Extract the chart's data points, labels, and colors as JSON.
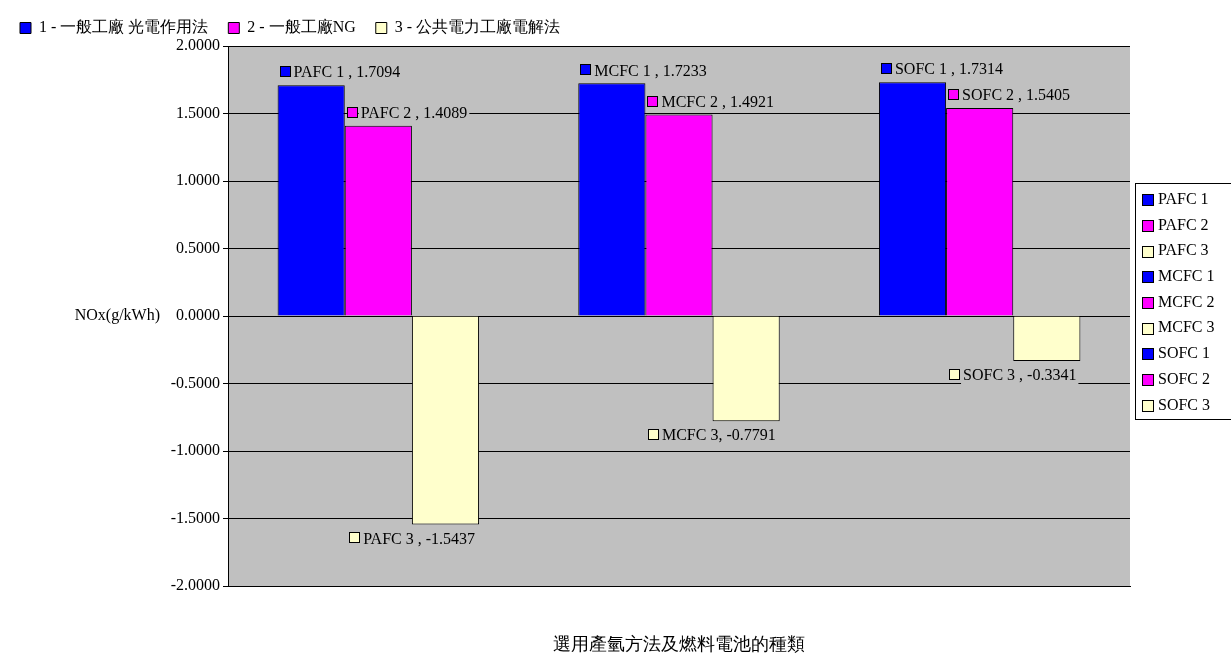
{
  "chart_data": {
    "type": "bar",
    "xlabel": "選用產氫方法及燃料電池的種類",
    "ylabel": "NOx(g/kWh)",
    "categories": [
      null,
      null,
      null
    ],
    "series": [
      {
        "name": "1 - 一般工廠 光電作用法",
        "color": "#0000ff",
        "values": [
          1.7094,
          1.7233,
          1.7314
        ],
        "value_labels": [
          "PAFC 1 , 1.7094",
          "MCFC 1 , 1.7233",
          "SOFC 1 , 1.7314"
        ]
      },
      {
        "name": "2 - 一般工廠NG",
        "color": "#ff00ff",
        "values": [
          1.4089,
          1.4921,
          1.5405
        ],
        "value_labels": [
          "PAFC 2 , 1.4089",
          "MCFC 2 , 1.4921",
          "SOFC 2 , 1.5405"
        ]
      },
      {
        "name": "3 - 公共電力工廠電解法",
        "color": "#ffffcc",
        "values": [
          -1.5437,
          -0.7791,
          -0.3341
        ],
        "value_labels": [
          "PAFC 3 , -1.5437",
          "MCFC 3, -0.7791",
          "SOFC 3 , -0.3341"
        ]
      }
    ],
    "ylim": [
      -2,
      2
    ],
    "yticks": [
      {
        "value": 2,
        "label": "2.0000"
      },
      {
        "value": 1.5,
        "label": "1.5000"
      },
      {
        "value": 1,
        "label": "1.0000"
      },
      {
        "value": 0.5,
        "label": "0.5000"
      },
      {
        "value": 0,
        "label": "0.0000"
      },
      {
        "value": -0.5,
        "label": "-0.5000"
      },
      {
        "value": -1,
        "label": "-1.0000"
      },
      {
        "value": -1.5,
        "label": "-1.5000"
      },
      {
        "value": -2,
        "label": "-2.0000"
      }
    ],
    "grid": "y",
    "legend": "top",
    "annotations": [
      "PAFC 1",
      "PAFC 2",
      "PAFC 3",
      "MCFC 1",
      "MCFC 2",
      "MCFC 3",
      "SOFC 1",
      "SOFC 2",
      "SOFC 3"
    ]
  }
}
